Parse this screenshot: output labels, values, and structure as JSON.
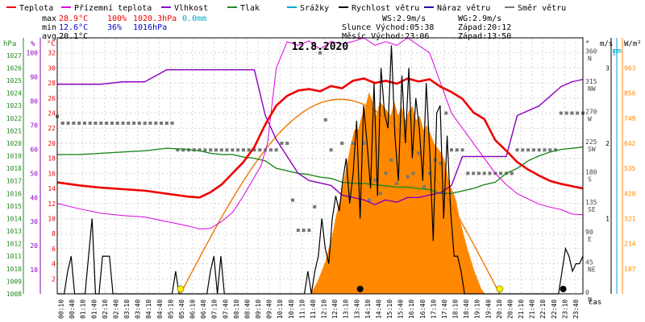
{
  "chart_data": {
    "type": "line",
    "title": "12.8.2020",
    "legend": [
      {
        "name": "Teplota",
        "color": "#ee0000"
      },
      {
        "name": "Přízemní teplota",
        "color": "#dd00dd"
      },
      {
        "name": "Vlhkost",
        "color": "#8800bb"
      },
      {
        "name": "Tlak",
        "color": "#228822"
      },
      {
        "name": "Srážky",
        "color": "#00aacc"
      },
      {
        "name": "Rychlost větru",
        "color": "#000000"
      },
      {
        "name": "Náraz větru",
        "color": "#2200aa"
      },
      {
        "name": "Směr větru",
        "color": "#777777"
      }
    ],
    "stats": {
      "max_label": "max",
      "max_temp": "28.9°C",
      "max_hum": "100%",
      "max_pres": "1020.3hPa",
      "max_rain": "0.0mm",
      "min_label": "min",
      "min_temp": "12.6°C",
      "min_hum": "36%",
      "min_pres": "1016hPa",
      "avg_label": "avg",
      "avg_temp": "20.1°C"
    },
    "info": {
      "ws": "WS:2.9m/s",
      "wg": "WG:2.9m/s",
      "sun": "Slunce Východ:05:38",
      "sunset": "Západ:20:12",
      "moon": "Měsíc  Východ:23:06",
      "moonset": "Západ:13:50"
    },
    "axis_titles": {
      "hpa": "hPa",
      "pct": "%",
      "degc": "°C",
      "deg": "°",
      "ms": "m/s",
      "wm2": "W/m²",
      "mm": "mm",
      "time": "čas"
    },
    "axes": {
      "pressure": [
        1008,
        1009,
        1010,
        1011,
        1012,
        1013,
        1014,
        1015,
        1016,
        1017,
        1018,
        1019,
        1020,
        1021,
        1022,
        1023,
        1024,
        1025,
        1026,
        1027
      ],
      "humidity": [
        10,
        20,
        30,
        40,
        50,
        60,
        70,
        80,
        90,
        100
      ],
      "temperature": [
        2,
        4,
        6,
        8,
        10,
        12,
        14,
        16,
        18,
        20,
        22,
        24,
        26,
        28,
        30,
        32
      ],
      "direction": [
        {
          "deg": 0,
          "lbl": "0",
          "dir": "N"
        },
        {
          "deg": 45,
          "lbl": "45",
          "dir": "NE"
        },
        {
          "deg": 90,
          "lbl": "90",
          "dir": "E"
        },
        {
          "deg": 135,
          "lbl": "135",
          "dir": "SE"
        },
        {
          "deg": 180,
          "lbl": "180",
          "dir": "S"
        },
        {
          "deg": 225,
          "lbl": "225",
          "dir": "SW"
        },
        {
          "deg": 270,
          "lbl": "270",
          "dir": "W"
        },
        {
          "deg": 315,
          "lbl": "315",
          "dir": "NW"
        },
        {
          "deg": 360,
          "lbl": "360",
          "dir": "N"
        }
      ],
      "wind": [
        1,
        2,
        3
      ],
      "rain": [
        1
      ],
      "solar": [
        107,
        214,
        321,
        428,
        535,
        642,
        749,
        856,
        963
      ],
      "ylim_temp": [
        0,
        34
      ],
      "ylim_hum": [
        0,
        106.25
      ],
      "ylim_pres": [
        1008,
        1028.4
      ],
      "ylim_dir": [
        0,
        382.5
      ],
      "ylim_wind": [
        0,
        3.4
      ],
      "ylim_solar": [
        0,
        1092
      ]
    },
    "time_ticks": [
      "00:10",
      "00:40",
      "01:10",
      "01:40",
      "02:10",
      "02:40",
      "03:10",
      "03:40",
      "04:10",
      "04:40",
      "05:10",
      "05:40",
      "06:10",
      "06:40",
      "07:10",
      "07:40",
      "08:10",
      "08:40",
      "09:10",
      "09:40",
      "10:10",
      "10:40",
      "11:10",
      "11:40",
      "12:10",
      "12:40",
      "13:10",
      "13:40",
      "14:10",
      "14:40",
      "15:10",
      "15:40",
      "16:10",
      "16:40",
      "17:10",
      "17:40",
      "18:10",
      "18:40",
      "19:10",
      "19:40",
      "20:10",
      "20:40",
      "21:10",
      "21:40",
      "22:10",
      "22:40",
      "23:10",
      "23:40"
    ],
    "series": [
      {
        "name": "Teplota",
        "color": "#ee0000",
        "x": [
          0,
          1,
          2,
          3,
          4,
          5,
          6,
          6.5,
          7,
          7.5,
          8,
          8.5,
          9,
          9.5,
          10,
          10.5,
          11,
          11.5,
          12,
          12.5,
          13,
          13.5,
          14,
          14.5,
          15,
          15.5,
          16,
          16.5,
          17,
          17.5,
          18,
          18.5,
          19,
          19.5,
          20,
          20.5,
          21,
          21.5,
          22,
          22.5,
          23,
          23.5,
          24
        ],
        "values": [
          14.8,
          14.4,
          14.1,
          13.9,
          13.7,
          13.3,
          12.9,
          12.8,
          13.5,
          14.5,
          16,
          17.5,
          19.5,
          22.5,
          25,
          26.3,
          27,
          27.2,
          26.9,
          27.6,
          27.3,
          28.3,
          28.6,
          28.0,
          28.3,
          27.9,
          28.6,
          28.2,
          28.5,
          27.5,
          26.8,
          25.9,
          24.1,
          23.2,
          20.4,
          19.0,
          17.5,
          16.5,
          15.7,
          15,
          14.6,
          14.3,
          14.0
        ]
      },
      {
        "name": "Přízemní teplota",
        "color": "#dd00dd",
        "x": [
          0,
          1,
          2,
          3,
          4,
          5,
          6,
          6.5,
          7,
          7.5,
          8,
          8.5,
          9,
          9.3,
          9.6,
          10,
          10.5,
          11,
          11.5,
          12,
          12.5,
          13,
          13.5,
          14,
          14.5,
          15,
          15.5,
          16,
          16.5,
          17,
          17.5,
          18,
          18.5,
          19,
          19.5,
          20,
          20.5,
          21,
          21.5,
          22,
          22.5,
          23,
          23.5,
          24
        ],
        "values": [
          12,
          11.3,
          10.7,
          10.4,
          10.2,
          9.6,
          9.0,
          8.6,
          8.7,
          9.6,
          10.8,
          13,
          15.5,
          17,
          20,
          30,
          33.5,
          33,
          33.6,
          32.5,
          33.5,
          33.2,
          33.5,
          34,
          33,
          33.5,
          33,
          34,
          33,
          32,
          28,
          24,
          22,
          20,
          18,
          16,
          14.5,
          13.3,
          12.6,
          11.9,
          11.5,
          11.2,
          10.6,
          10.5
        ]
      },
      {
        "name": "Vlhkost",
        "color": "#8800bb",
        "x": [
          0,
          1,
          2,
          3,
          4,
          5,
          6,
          6.5,
          7,
          7.5,
          8,
          8.5,
          9,
          9.5,
          10,
          10.5,
          11,
          11.5,
          12,
          12.5,
          13,
          13.5,
          14,
          14.5,
          15,
          15.5,
          16,
          16.5,
          17,
          17.5,
          18,
          18.5,
          19,
          19.5,
          20,
          20.5,
          21,
          21.5,
          22,
          22.5,
          23,
          23.5,
          24
        ],
        "values": [
          87,
          87,
          87,
          88,
          88,
          93,
          93,
          93,
          93,
          93,
          93,
          93,
          93,
          74,
          64,
          57,
          50,
          47,
          46,
          45,
          41,
          40,
          39,
          37,
          39,
          38,
          40,
          40,
          41,
          42,
          45,
          57,
          57,
          57,
          57,
          57,
          74,
          76,
          78,
          82,
          86,
          88,
          89
        ]
      },
      {
        "name": "Tlak",
        "color": "#228822",
        "x": [
          0,
          1,
          2,
          3,
          4,
          5,
          6,
          6.5,
          7,
          7.5,
          8,
          8.5,
          9,
          9.5,
          10,
          10.5,
          11,
          11.5,
          12,
          12.5,
          13,
          13.5,
          14,
          14.5,
          15,
          15.5,
          16,
          16.5,
          17,
          17.5,
          18,
          18.5,
          19,
          19.5,
          20,
          20.5,
          21,
          21.5,
          22,
          22.5,
          23,
          23.5,
          24
        ],
        "values": [
          1019.1,
          1019.1,
          1019.2,
          1019.3,
          1019.4,
          1019.6,
          1019.5,
          1019.4,
          1019.2,
          1019.1,
          1019.1,
          1018.9,
          1018.8,
          1018.6,
          1018.0,
          1017.8,
          1017.6,
          1017.5,
          1017.3,
          1017.2,
          1016.9,
          1016.8,
          1016.8,
          1016.7,
          1016.6,
          1016.5,
          1016.5,
          1016.4,
          1016.3,
          1016.0,
          1016.0,
          1016.2,
          1016.4,
          1016.7,
          1016.9,
          1017.6,
          1018.0,
          1018.6,
          1019.0,
          1019.3,
          1019.5,
          1019.6,
          1019.7
        ]
      },
      {
        "name": "Náraz větru",
        "color": "#2200aa",
        "x": [],
        "values": []
      },
      {
        "name": "Srážky",
        "color": "#00aacc",
        "x": [],
        "values": []
      }
    ],
    "wind_speed": [
      0,
      0,
      0,
      0.3,
      0.5,
      0,
      0,
      0,
      0,
      0.5,
      1.0,
      0,
      0,
      0.5,
      0.5,
      0.5,
      0,
      0,
      0,
      0,
      0,
      0,
      0,
      0,
      0,
      0,
      0,
      0,
      0,
      0,
      0,
      0,
      0,
      0,
      0.3,
      0,
      0,
      0,
      0,
      0,
      0,
      0,
      0,
      0,
      0.3,
      0.5,
      0,
      0.5,
      0,
      0,
      0,
      0,
      0,
      0,
      0,
      0,
      0,
      0,
      0,
      0,
      0,
      0,
      0,
      0,
      0,
      0,
      0,
      0,
      0,
      0,
      0,
      0,
      0.3,
      0,
      0.3,
      0.5,
      1.0,
      0.6,
      0.4,
      1.0,
      1.3,
      1.1,
      1.5,
      1.8,
      1.2,
      1.6,
      2.3,
      1.0,
      2.5,
      2.0,
      1.4,
      2.8,
      1.3,
      3.0,
      2.4,
      2.2,
      3.3,
      2.1,
      1.5,
      2.9,
      2.0,
      3.0,
      1.8,
      2.6,
      2.2,
      1.5,
      2.8,
      1.9,
      0.7,
      2.4,
      2.5,
      1.0,
      2.1,
      1.1,
      0.5,
      0.5,
      0.3,
      0,
      0,
      0,
      0,
      0,
      0,
      0,
      0,
      0,
      0,
      0,
      0,
      0,
      0,
      0,
      0,
      0,
      0,
      0,
      0,
      0,
      0,
      0,
      0,
      0,
      0,
      0,
      0,
      0.3,
      0.6,
      0.5,
      0.3,
      0.4,
      0.4,
      0.5
    ],
    "wind_dir_points": [
      [
        0,
        265
      ],
      [
        0.25,
        255
      ],
      [
        0.5,
        255
      ],
      [
        0.75,
        255
      ],
      [
        1,
        255
      ],
      [
        1.25,
        255
      ],
      [
        1.5,
        255
      ],
      [
        1.75,
        255
      ],
      [
        2,
        255
      ],
      [
        2.25,
        255
      ],
      [
        2.5,
        255
      ],
      [
        2.75,
        255
      ],
      [
        3,
        255
      ],
      [
        3.25,
        255
      ],
      [
        3.5,
        255
      ],
      [
        3.75,
        255
      ],
      [
        4,
        255
      ],
      [
        4.25,
        255
      ],
      [
        4.5,
        255
      ],
      [
        4.75,
        255
      ],
      [
        5,
        255
      ],
      [
        5.25,
        255
      ],
      [
        5.5,
        215
      ],
      [
        5.75,
        215
      ],
      [
        6,
        215
      ],
      [
        6.25,
        215
      ],
      [
        6.5,
        215
      ],
      [
        6.75,
        215
      ],
      [
        7,
        215
      ],
      [
        7.25,
        215
      ],
      [
        7.5,
        215
      ],
      [
        7.75,
        215
      ],
      [
        8,
        215
      ],
      [
        8.25,
        215
      ],
      [
        8.5,
        215
      ],
      [
        8.75,
        215
      ],
      [
        9,
        215
      ],
      [
        9.25,
        215
      ],
      [
        9.5,
        215
      ],
      [
        9.75,
        215
      ],
      [
        10,
        215
      ],
      [
        10.25,
        225
      ],
      [
        10.5,
        225
      ],
      [
        10.75,
        140
      ],
      [
        11,
        95
      ],
      [
        11.25,
        95
      ],
      [
        11.5,
        95
      ],
      [
        11.75,
        130
      ],
      [
        12,
        360
      ],
      [
        12.25,
        260
      ],
      [
        12.5,
        215
      ],
      [
        13,
        225
      ],
      [
        13.5,
        225
      ],
      [
        14,
        225
      ],
      [
        14.25,
        140
      ],
      [
        14.5,
        170
      ],
      [
        14.75,
        150
      ],
      [
        15,
        180
      ],
      [
        15.25,
        200
      ],
      [
        15.5,
        165
      ],
      [
        16,
        175
      ],
      [
        16.25,
        180
      ],
      [
        16.5,
        210
      ],
      [
        16.75,
        160
      ],
      [
        17,
        180
      ],
      [
        17.25,
        200
      ],
      [
        17.5,
        195
      ],
      [
        17.75,
        270
      ],
      [
        18,
        215
      ],
      [
        18.25,
        215
      ],
      [
        18.5,
        215
      ],
      [
        18.75,
        180
      ],
      [
        19,
        180
      ],
      [
        19.25,
        180
      ],
      [
        19.5,
        180
      ],
      [
        19.75,
        180
      ],
      [
        20,
        180
      ],
      [
        20.25,
        180
      ],
      [
        20.5,
        180
      ],
      [
        20.75,
        180
      ],
      [
        21,
        215
      ],
      [
        21.25,
        215
      ],
      [
        21.5,
        215
      ],
      [
        21.75,
        215
      ],
      [
        22,
        215
      ],
      [
        22.25,
        215
      ],
      [
        22.5,
        215
      ],
      [
        22.75,
        215
      ],
      [
        23,
        270
      ],
      [
        23.25,
        270
      ],
      [
        23.5,
        270
      ],
      [
        23.75,
        270
      ],
      [
        24,
        270
      ]
    ],
    "solar": [
      0,
      0,
      0,
      0,
      0,
      0,
      0,
      0,
      0,
      0,
      0,
      0,
      0,
      0,
      0,
      0,
      0,
      0,
      0,
      0,
      0,
      0,
      0,
      0,
      0,
      0,
      0,
      0,
      0,
      0,
      0,
      0,
      0,
      0,
      0,
      0,
      0,
      0,
      0,
      0,
      0,
      0,
      0,
      0,
      0,
      0,
      0,
      0,
      0,
      0,
      0,
      0,
      0,
      0,
      0,
      0,
      0,
      0,
      0,
      0,
      0,
      0,
      0,
      0,
      0,
      0,
      0,
      0,
      0,
      0,
      0,
      30,
      60,
      100,
      140,
      200,
      260,
      340,
      400,
      480,
      560,
      640,
      700,
      700,
      760,
      800,
      860,
      820,
      760,
      820,
      800,
      780,
      760,
      820,
      760,
      800,
      740,
      780,
      800,
      740,
      760,
      700,
      720,
      680,
      640,
      620,
      600,
      560,
      480,
      440,
      400,
      320,
      260,
      200,
      150,
      100,
      60,
      20,
      0,
      0,
      0,
      0,
      0,
      0,
      0,
      0,
      0,
      0,
      0,
      0,
      0,
      0,
      0,
      0,
      0,
      0,
      0,
      0,
      0,
      0,
      0,
      0,
      0,
      0,
      0,
      0
    ],
    "solar_theory": {
      "start": 5.63,
      "end": 20.2,
      "peak": 830
    },
    "markers": {
      "sunrise_time": 5.63,
      "sunset_time": 20.2,
      "moonrise_time": 23.1,
      "moonset_time": 13.83
    }
  }
}
